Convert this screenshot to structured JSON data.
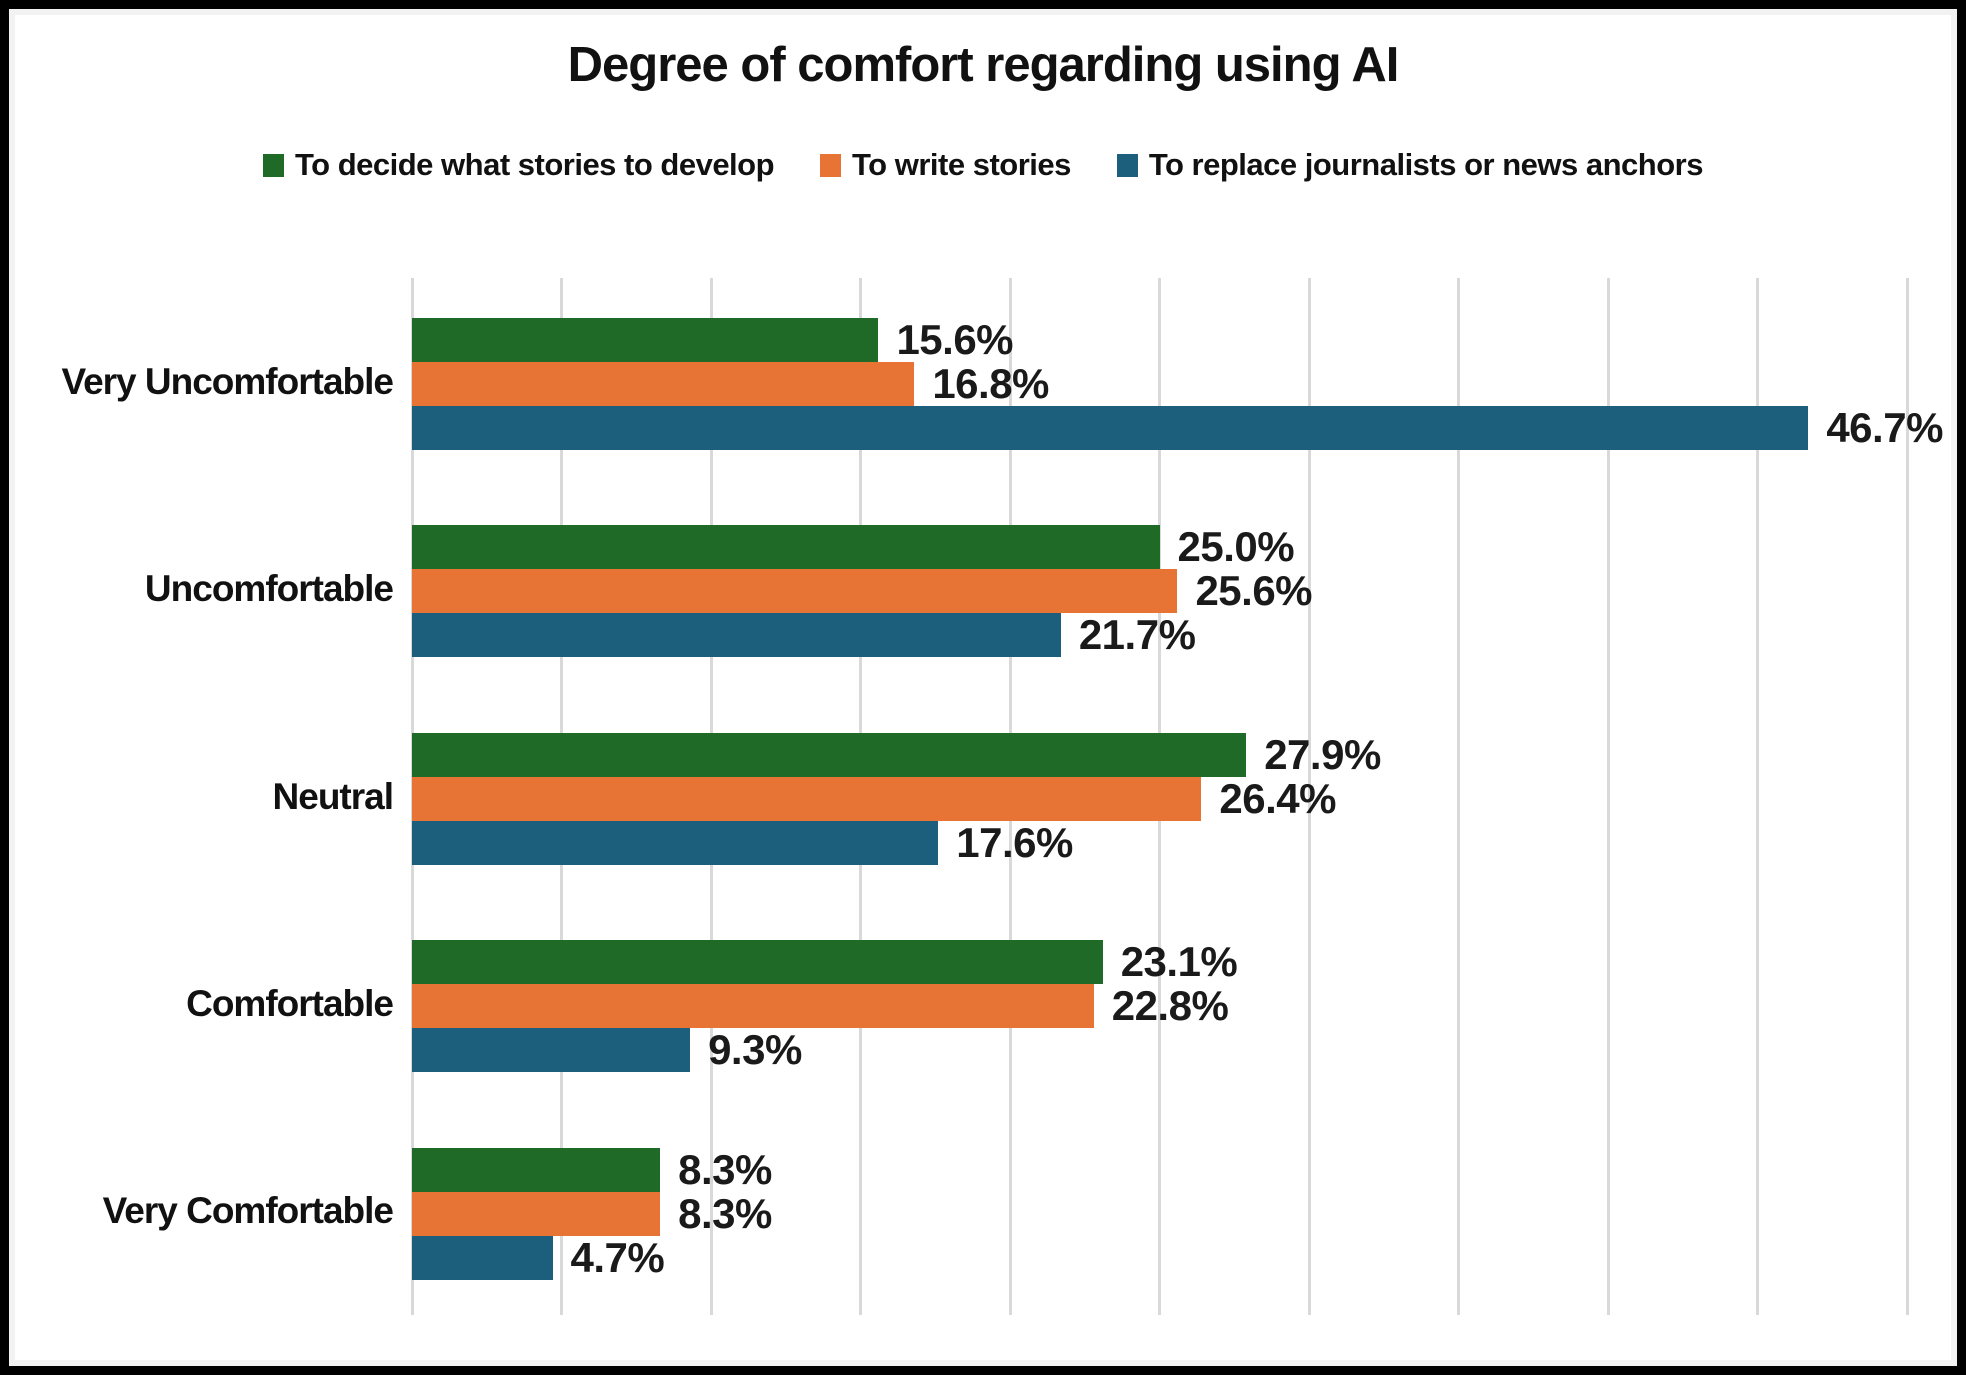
{
  "title": "Degree of comfort regarding using AI",
  "colors": {
    "green": "#1E6A26",
    "orange": "#E77335",
    "blue": "#1C5F7C",
    "gridline": "#D9D9D9",
    "text": "#111111",
    "frame_border": "#000000"
  },
  "chart_data": {
    "type": "bar",
    "orientation": "horizontal",
    "title": "Degree of comfort regarding using AI",
    "categories": [
      "Very Uncomfortable",
      "Uncomfortable",
      "Neutral",
      "Comfortable",
      "Very Comfortable"
    ],
    "series": [
      {
        "name": "To decide what stories to develop",
        "color": "#1E6A26",
        "values": [
          15.6,
          25.0,
          27.9,
          23.1,
          8.3
        ]
      },
      {
        "name": "To write stories",
        "color": "#E77335",
        "values": [
          16.8,
          25.6,
          26.4,
          22.8,
          8.3
        ]
      },
      {
        "name": "To replace journalists or news anchors",
        "color": "#1C5F7C",
        "values": [
          46.7,
          21.7,
          17.6,
          9.3,
          4.7
        ]
      }
    ],
    "value_labels": [
      [
        "15.6%",
        "25.0%",
        "27.9%",
        "23.1%",
        "8.3%"
      ],
      [
        "16.8%",
        "25.6%",
        "26.4%",
        "22.8%",
        "8.3%"
      ],
      [
        "46.7%",
        "21.7%",
        "17.6%",
        "9.3%",
        "4.7%"
      ]
    ],
    "xlim": [
      0,
      50
    ],
    "gridline_step": 5,
    "grid": "vertical",
    "legend_position": "top",
    "x_axis_tick_labels_visible": false,
    "data_labels": "outside-end"
  }
}
